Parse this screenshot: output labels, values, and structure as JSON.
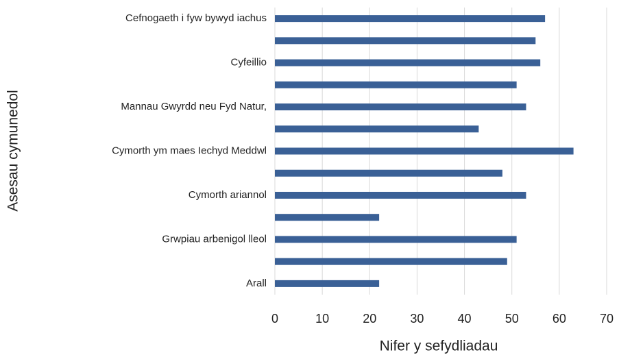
{
  "chart_data": {
    "type": "barh",
    "x_label": "Nifer y sefydliadau",
    "y_label": "Asesau cymunedol",
    "categories": [
      "Cefnogaeth i fyw bywyd iachus",
      null,
      "Cyfeillio",
      null,
      "Mannau Gwyrdd neu Fyd Natur,",
      null,
      "Cymorth ym maes Iechyd Meddwl",
      null,
      "Cymorth ariannol",
      null,
      "Grwpiau arbenigol lleol",
      null,
      "Arall"
    ],
    "values": [
      57,
      55,
      56,
      51,
      53,
      43,
      63,
      48,
      53,
      22,
      51,
      49,
      22
    ],
    "color": "#3a6096",
    "xlim": [
      0,
      70
    ],
    "xticks": [
      0,
      10,
      20,
      30,
      40,
      50,
      60,
      70
    ],
    "grid": true
  }
}
